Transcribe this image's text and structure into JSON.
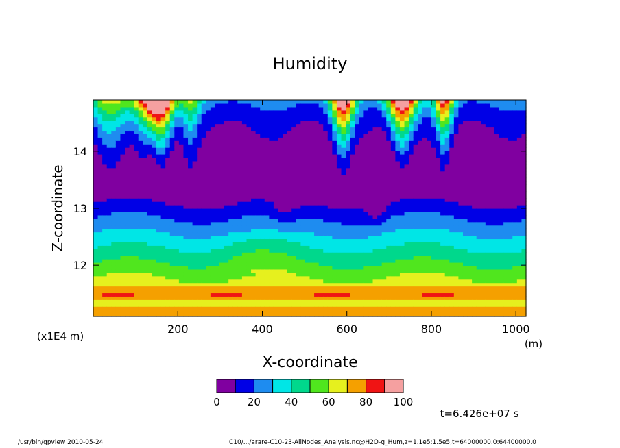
{
  "chart_data": {
    "type": "heatmap",
    "title": "Humidity",
    "xlabel": "X-coordinate",
    "ylabel": "Z-coordinate",
    "x_unit": "(m)",
    "y_unit": "(x1E4 m)",
    "xlim": [
      0,
      1024
    ],
    "ylim": [
      11.1,
      14.9
    ],
    "x_ticks": [
      200,
      400,
      600,
      800,
      1000
    ],
    "y_ticks": [
      12,
      13,
      14
    ],
    "x_tick_labels": [
      "200",
      "400",
      "600",
      "800",
      "1000"
    ],
    "y_tick_labels": [
      "12",
      "13",
      "14"
    ],
    "colorbar": {
      "levels": [
        0,
        10,
        20,
        30,
        40,
        50,
        60,
        70,
        80,
        90,
        100
      ],
      "tick_values": [
        0,
        20,
        40,
        60,
        80,
        100
      ],
      "tick_labels": [
        "0",
        "20",
        "40",
        "60",
        "80",
        "100"
      ],
      "colors": [
        "#8000a0",
        "#0000e6",
        "#1e8cf0",
        "#00e6e6",
        "#00d88c",
        "#50e61e",
        "#e6f01e",
        "#f5a000",
        "#f01414",
        "#f5a0a0"
      ]
    },
    "time_annotation": "t=6.426e+07 s",
    "grid": false,
    "legend": "bottom"
  },
  "footer": {
    "left": "/usr/bin/gpview   2010-05-24",
    "right": "C10/.../arare-C10-23-AllNodes_Analysis.nc@H2O-g_Hum,z=1.1e5:1.5e5,t=64000000.0:64400000.0"
  }
}
